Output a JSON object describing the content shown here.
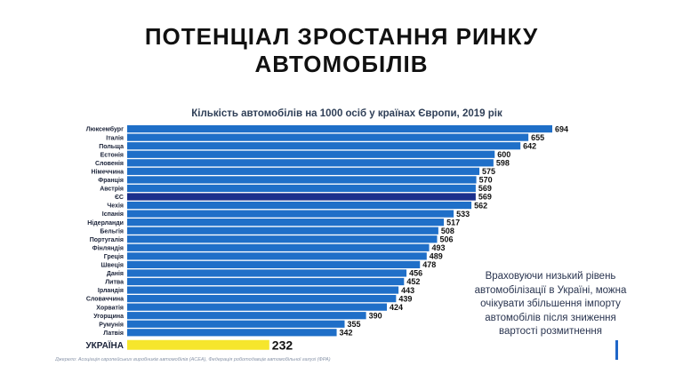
{
  "page": {
    "title_line1": "ПОТЕНЦІАЛ ЗРОСТАННЯ РИНКУ",
    "title_line2": "АВТОМОБІЛІВ",
    "note": "Враховуючи низький рівень автомобілізації в Україні, можна очікувати збільшення імпорту автомобілів після зниження вартості розмитнення",
    "footnote": "Джерело: Асоціація європейських виробників автомобілів (ACEA), Федерація роботодавців автомобільної галузі (ФРА)",
    "colors": {
      "bar_default": "#1f6fc8",
      "bar_eu": "#1b2f8c",
      "bar_ukraine": "#f6e62c",
      "text": "#111111"
    }
  },
  "chart_data": {
    "type": "bar",
    "orientation": "horizontal",
    "title": "Кількість автомобілів на 1000 осіб у країнах Європи, 2019 рік",
    "categories": [
      "Люксембург",
      "Італія",
      "Польща",
      "Естонія",
      "Словенія",
      "Німеччина",
      "Франція",
      "Австрія",
      "ЄС",
      "Чехія",
      "Іспанія",
      "Нідерланди",
      "Бельгія",
      "Португалія",
      "Фінляндія",
      "Греція",
      "Швеція",
      "Данія",
      "Литва",
      "Ірландія",
      "Словаччина",
      "Хорватія",
      "Угорщина",
      "Румунія",
      "Латвія",
      "УКРАЇНА"
    ],
    "values": [
      694,
      655,
      642,
      600,
      598,
      575,
      570,
      569,
      569,
      562,
      533,
      517,
      508,
      506,
      493,
      489,
      478,
      456,
      452,
      443,
      439,
      424,
      390,
      355,
      342,
      232
    ],
    "highlight": {
      "ЄС": "eu",
      "УКРАЇНА": "ukraine"
    },
    "xlim": [
      0,
      694
    ],
    "grid": false,
    "legend": "none"
  }
}
